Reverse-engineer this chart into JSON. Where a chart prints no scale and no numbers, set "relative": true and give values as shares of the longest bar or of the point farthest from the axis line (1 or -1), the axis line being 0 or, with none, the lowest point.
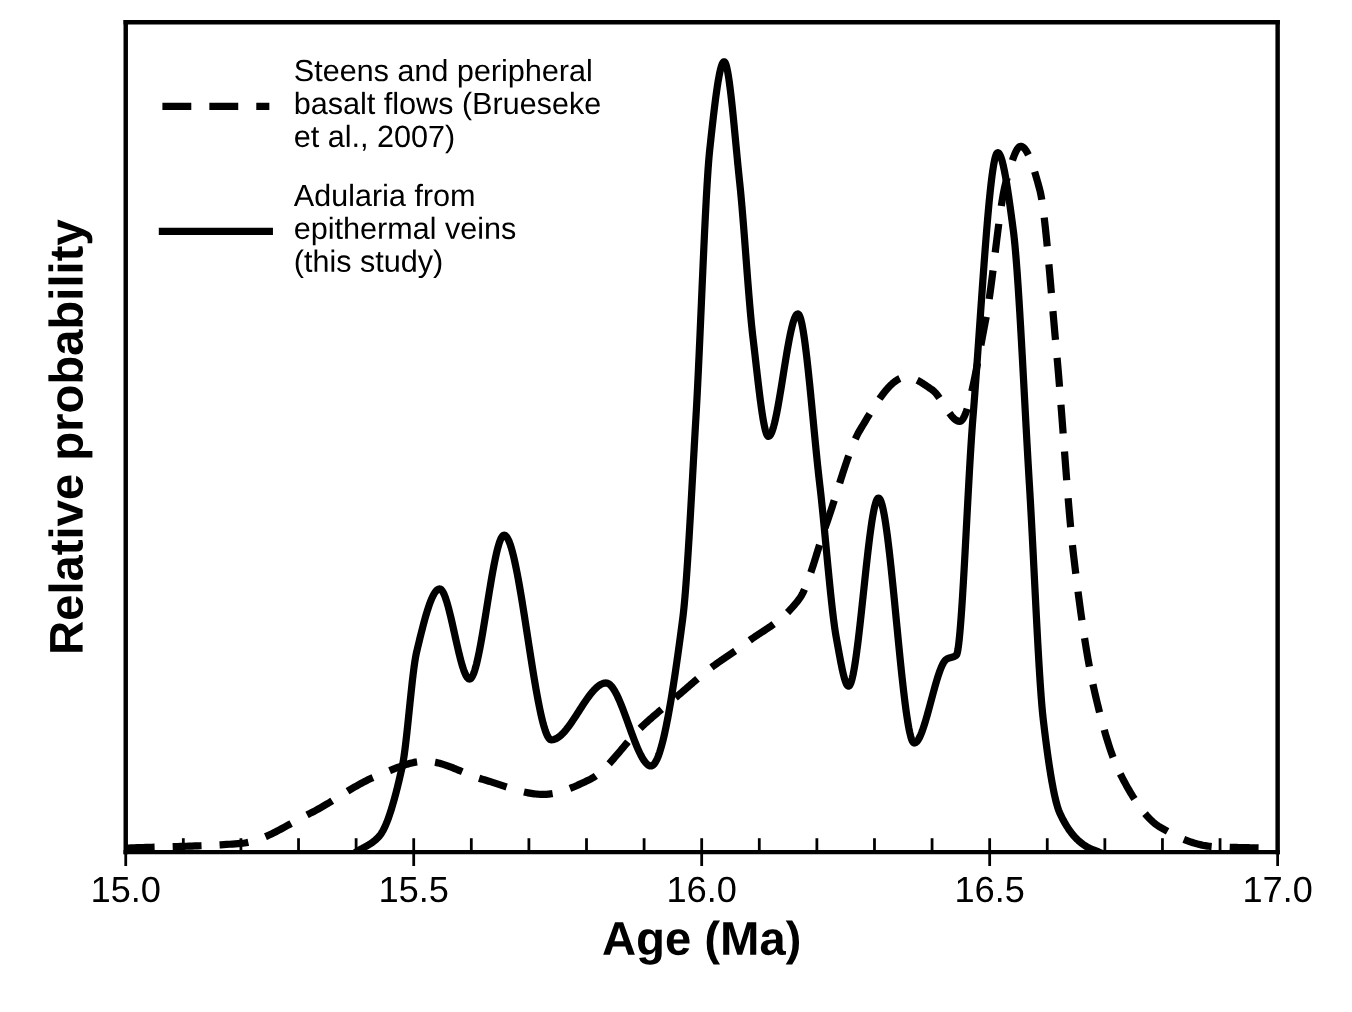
{
  "chart_data": {
    "type": "line",
    "relative": true,
    "xlabel": "Age (Ma)",
    "ylabel": "Relative probability",
    "xlim": [
      15.0,
      17.0
    ],
    "xticks": [
      {
        "value": 15.0,
        "label": "15.0"
      },
      {
        "value": 15.1,
        "label": null
      },
      {
        "value": 15.2,
        "label": null
      },
      {
        "value": 15.3,
        "label": null
      },
      {
        "value": 15.4,
        "label": null
      },
      15.5,
      {
        "value": 15.6,
        "label": null
      },
      {
        "value": 15.7,
        "label": null
      },
      {
        "value": 15.8,
        "label": null
      },
      {
        "value": 15.9,
        "label": null
      },
      {
        "value": 16.0,
        "label": "16.0"
      },
      {
        "value": 16.1,
        "label": null
      },
      {
        "value": 16.2,
        "label": null
      },
      {
        "value": 16.3,
        "label": null
      },
      {
        "value": 16.4,
        "label": null
      },
      16.5,
      {
        "value": 16.6,
        "label": null
      },
      {
        "value": 16.7,
        "label": null
      },
      {
        "value": 16.8,
        "label": null
      },
      {
        "value": 16.9,
        "label": null
      },
      {
        "value": 17.0,
        "label": "17.0"
      }
    ],
    "grid": false,
    "legend": "top left",
    "marker": "none",
    "series": [
      {
        "name": "Steens and peripheral\nbasalt flows (Brueseke\net al., 2007)",
        "color": "#000000",
        "line_style": "dashed",
        "x": [
          15.0,
          15.2,
          15.32,
          15.435,
          15.52,
          15.62,
          15.725,
          15.806,
          15.898,
          15.962,
          16.014,
          16.078,
          16.17,
          16.216,
          16.274,
          16.355,
          16.4,
          16.448,
          16.494,
          16.528,
          16.554,
          16.587,
          16.616,
          16.645,
          16.68,
          16.726,
          16.795,
          16.888,
          16.98
        ],
        "values": [
          0.005,
          0.011,
          0.049,
          0.096,
          0.115,
          0.092,
          0.073,
          0.092,
          0.16,
          0.2,
          0.232,
          0.265,
          0.321,
          0.414,
          0.533,
          0.601,
          0.585,
          0.545,
          0.677,
          0.847,
          0.893,
          0.838,
          0.634,
          0.38,
          0.21,
          0.1,
          0.032,
          0.007,
          0.005
        ]
      },
      {
        "name": "Adularia from\nepithermal veins\n(this study)",
        "color": "#000000",
        "line_style": "solid",
        "x": [
          15.4,
          15.44,
          15.48,
          15.505,
          15.545,
          15.597,
          15.657,
          15.739,
          15.834,
          15.912,
          15.967,
          15.99,
          16.014,
          16.039,
          16.066,
          16.089,
          16.116,
          16.167,
          16.205,
          16.234,
          16.255,
          16.307,
          16.369,
          16.425,
          16.442,
          16.471,
          16.514,
          16.541,
          16.569,
          16.593,
          16.622,
          16.668,
          16.69
        ],
        "values": [
          0.0,
          0.02,
          0.108,
          0.253,
          0.333,
          0.219,
          0.401,
          0.142,
          0.214,
          0.109,
          0.295,
          0.55,
          0.889,
          1.0,
          0.847,
          0.651,
          0.526,
          0.681,
          0.465,
          0.27,
          0.21,
          0.448,
          0.138,
          0.244,
          0.249,
          0.55,
          0.885,
          0.787,
          0.465,
          0.168,
          0.049,
          0.007,
          0.0
        ]
      }
    ]
  }
}
